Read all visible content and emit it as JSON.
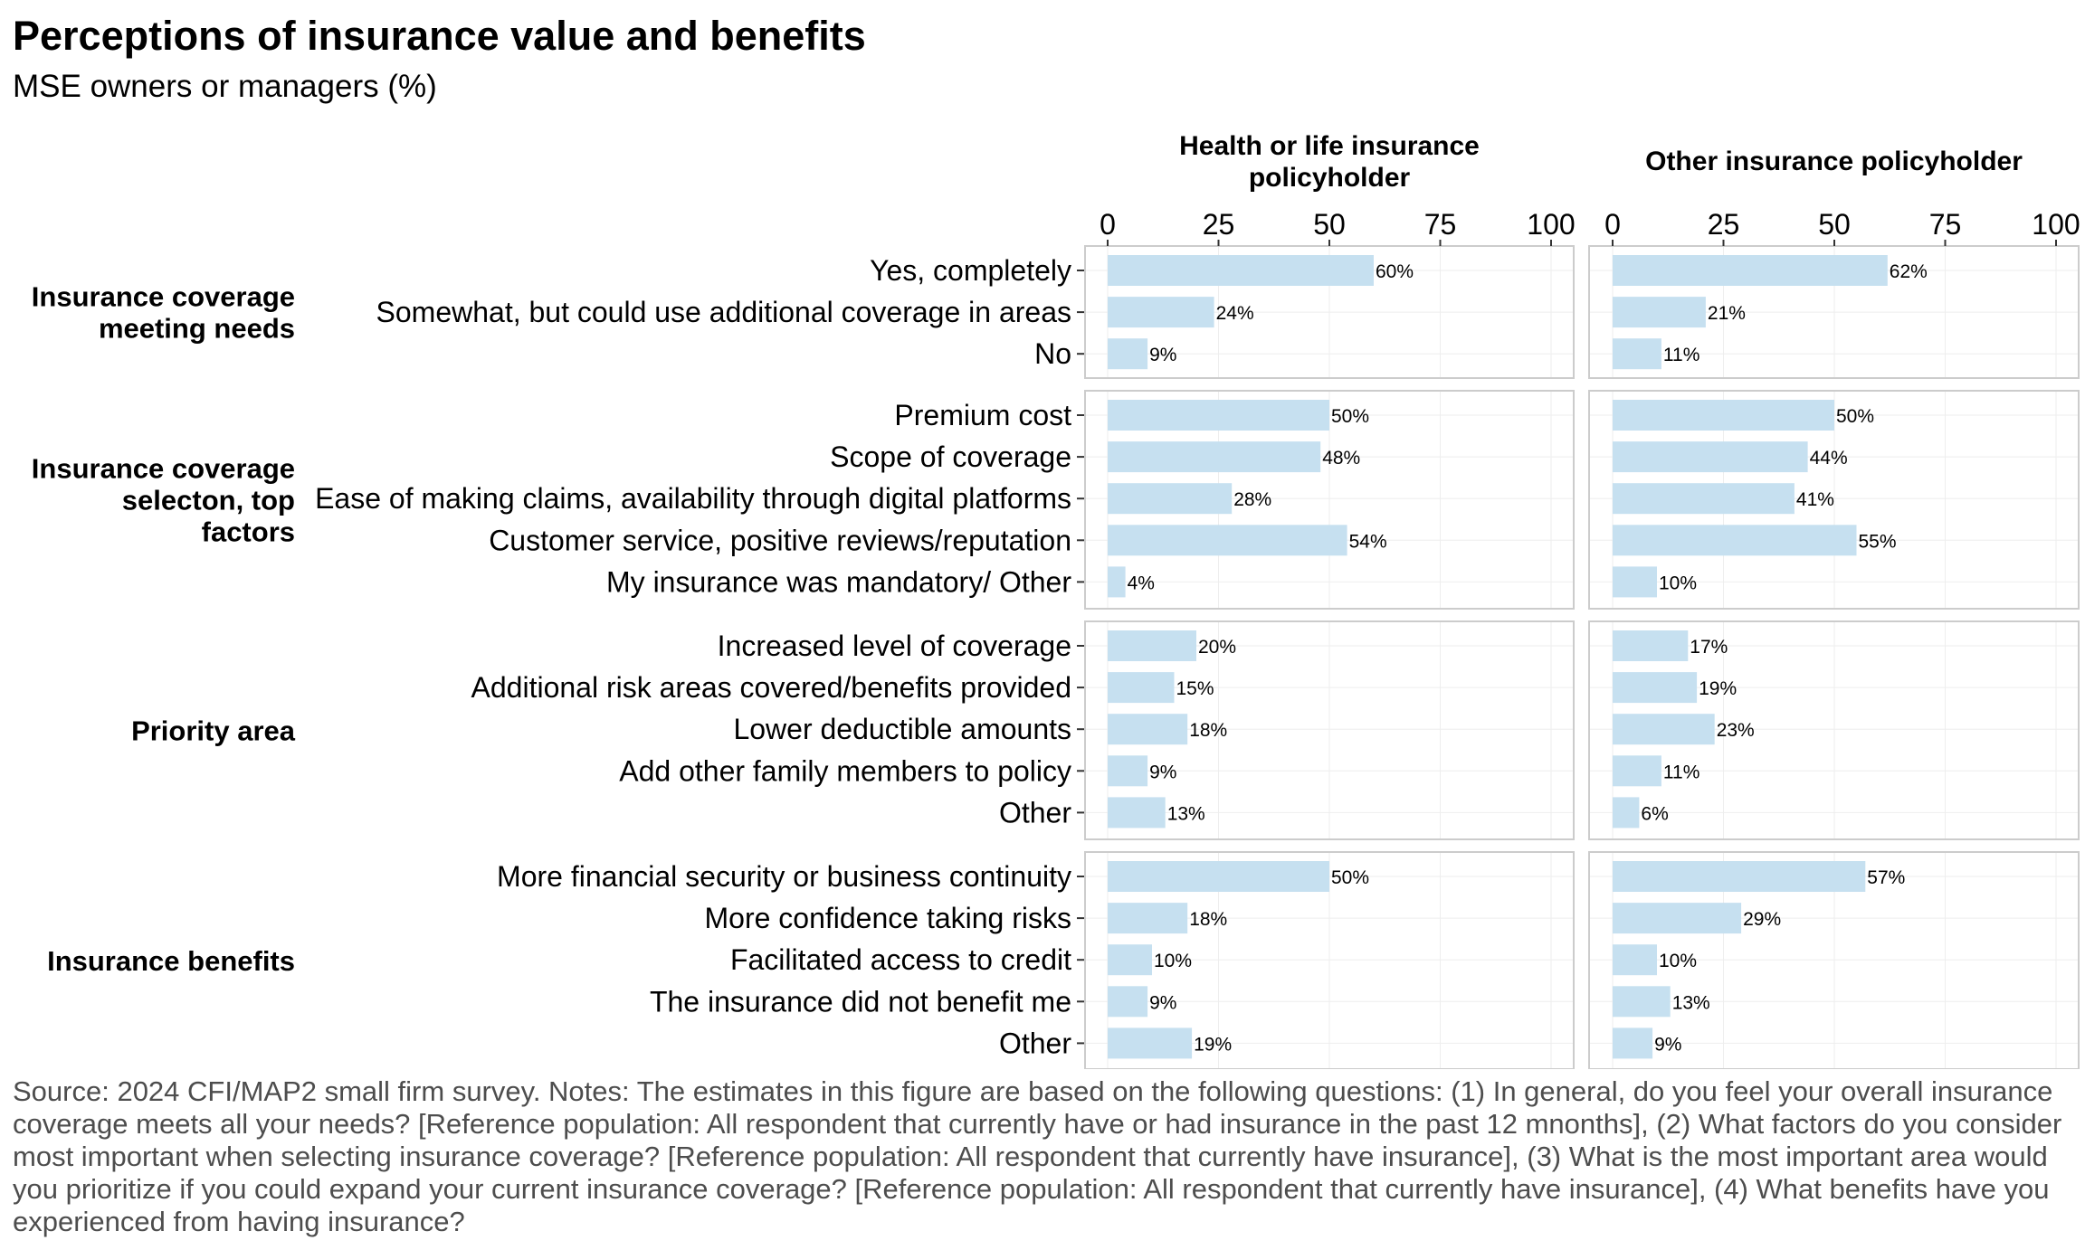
{
  "title": "Perceptions of insurance value and benefits",
  "subtitle": "MSE owners or managers (%)",
  "notes": "Source: 2024 CFI/MAP2 small firm survey. Notes: The estimates in this figure are based on the following questions: (1) In general, do you feel your overall insurance coverage meets all your needs? [Reference population: All respondent that currently have or had insurance in the past 12 mnonths], (2) What factors do you consider most important when selecting insurance coverage? [Reference population: All respondent that currently have insurance], (3) What is the most important area would you prioritize if you could expand your current insurance coverage? [Reference population: All respondent that currently have insurance], (4) What benefits have you experienced from having insurance?",
  "chart_data": {
    "type": "bar",
    "orientation": "horizontal",
    "bar_color": "#c6e0f0",
    "panel_border_color": "#cccccc",
    "grid": true,
    "xlim": [
      0,
      100
    ],
    "x_ticks": [
      "0",
      "25",
      "50",
      "75",
      "100"
    ],
    "value_suffix": "%",
    "panels": [
      "Health or life insurance policyholder",
      "Other insurance policyholder"
    ],
    "groups": [
      {
        "name": "Insurance coverage meeting needs",
        "categories": [
          "Yes, completely",
          "Somewhat, but could use additional coverage in areas",
          "No"
        ],
        "values": [
          [
            60,
            24,
            9
          ],
          [
            62,
            21,
            11
          ]
        ]
      },
      {
        "name": "Insurance coverage selecton, top factors",
        "categories": [
          "Premium cost",
          "Scope of coverage",
          "Ease of making claims, availability through digital platforms",
          "Customer service, positive reviews/reputation",
          "My insurance was mandatory/ Other"
        ],
        "values": [
          [
            50,
            48,
            28,
            54,
            4
          ],
          [
            50,
            44,
            41,
            55,
            10
          ]
        ]
      },
      {
        "name": "Priority area",
        "categories": [
          "Increased level of coverage",
          "Additional risk areas covered/benefits provided",
          "Lower deductible amounts",
          "Add other family members to policy",
          "Other"
        ],
        "values": [
          [
            20,
            15,
            18,
            9,
            13
          ],
          [
            17,
            19,
            23,
            11,
            6
          ]
        ]
      },
      {
        "name": "Insurance benefits",
        "categories": [
          "More financial security or business continuity",
          "More confidence taking risks",
          "Facilitated access to credit",
          "The insurance did not benefit me",
          "Other"
        ],
        "values": [
          [
            50,
            18,
            10,
            9,
            19
          ],
          [
            57,
            29,
            10,
            13,
            9
          ]
        ]
      }
    ]
  }
}
